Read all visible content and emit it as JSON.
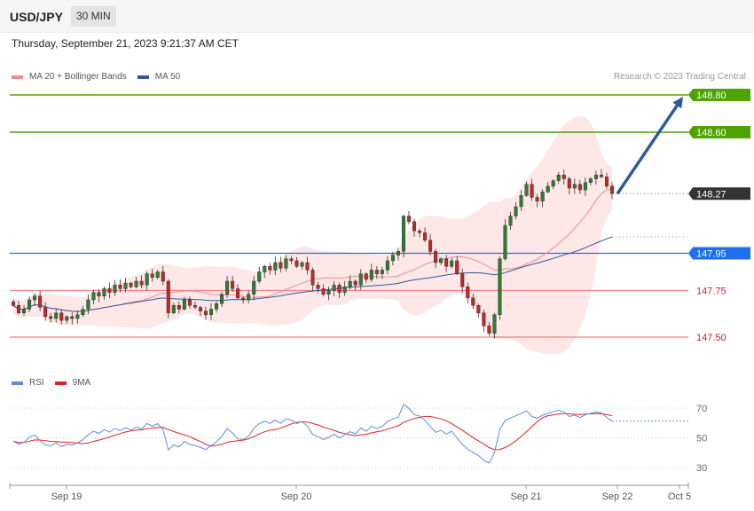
{
  "header": {
    "pair": "USD/JPY",
    "interval": "30 MIN"
  },
  "timestamp": "Thursday, September 21, 2023 9:21:37 AM CET",
  "credit": "Research © 2023 Trading Central",
  "legend_main": [
    {
      "label": "MA 20 + Bollinger Bands",
      "color": "#f28c8c"
    },
    {
      "label": "MA 50",
      "color": "#2f5a9a"
    }
  ],
  "legend_rsi": [
    {
      "label": "RSI",
      "color": "#5b8de0"
    },
    {
      "label": "9MA",
      "color": "#e02020"
    }
  ],
  "colors": {
    "bull": "#2e7d32",
    "bear": "#c62828",
    "resistance": "#4fa300",
    "pivot": "#1e6ff0",
    "support": "#f08080",
    "last": "#333333",
    "arrow": "#2f5a9a",
    "band": "#fde3e3"
  },
  "chart_data": [
    {
      "type": "candlestick",
      "ylim": [
        147.4,
        148.85
      ],
      "x_ticks": [
        "Sep 19",
        "Sep 20",
        "Sep 21",
        "Sep 22",
        "Oct 5"
      ],
      "levels": [
        {
          "value": 148.8,
          "label": "148.80",
          "kind": "resistance"
        },
        {
          "value": 148.6,
          "label": "148.60",
          "kind": "resistance"
        },
        {
          "value": 148.27,
          "label": "148.27",
          "kind": "last"
        },
        {
          "value": 147.95,
          "label": "147.95",
          "kind": "pivot"
        },
        {
          "value": 147.75,
          "label": "147.75",
          "kind": "support"
        },
        {
          "value": 147.5,
          "label": "147.50",
          "kind": "support"
        }
      ],
      "arrow": {
        "from": 148.27,
        "to": 148.8
      },
      "closes": [
        147.67,
        147.63,
        147.65,
        147.7,
        147.72,
        147.66,
        147.61,
        147.6,
        147.63,
        147.59,
        147.61,
        147.6,
        147.62,
        147.65,
        147.7,
        147.74,
        147.72,
        147.76,
        147.74,
        147.78,
        147.76,
        147.79,
        147.77,
        147.8,
        147.78,
        147.84,
        147.82,
        147.85,
        147.8,
        147.63,
        147.67,
        147.65,
        147.7,
        147.67,
        147.66,
        147.64,
        147.62,
        147.65,
        147.68,
        147.73,
        147.8,
        147.76,
        147.71,
        147.7,
        147.73,
        147.8,
        147.85,
        147.88,
        147.86,
        147.9,
        147.87,
        147.92,
        147.91,
        147.88,
        147.9,
        147.86,
        147.78,
        147.76,
        147.73,
        147.75,
        147.78,
        147.74,
        147.77,
        147.8,
        147.78,
        147.84,
        147.81,
        147.86,
        147.84,
        147.86,
        147.91,
        147.94,
        147.96,
        148.15,
        148.12,
        148.07,
        148.06,
        148.02,
        147.96,
        147.9,
        147.92,
        147.88,
        147.91,
        147.84,
        147.77,
        147.71,
        147.67,
        147.63,
        147.56,
        147.52,
        147.62,
        147.92,
        148.1,
        148.15,
        148.2,
        148.26,
        148.32,
        148.25,
        148.23,
        148.28,
        148.31,
        148.34,
        148.37,
        148.35,
        148.3,
        148.32,
        148.29,
        148.33,
        148.35,
        148.37,
        148.36,
        148.31,
        148.27
      ]
    },
    {
      "type": "line",
      "title": "RSI",
      "ylim": [
        20,
        80
      ],
      "y_ticks": [
        70,
        50,
        30
      ],
      "rsi": [
        47.8,
        45.7,
        47.0,
        50.5,
        51.9,
        48.1,
        45.2,
        44.6,
        46.6,
        44.1,
        45.7,
        45.1,
        46.6,
        48.7,
        52.0,
        54.4,
        53.0,
        55.5,
        53.8,
        56.3,
        54.8,
        56.8,
        55.3,
        57.3,
        55.8,
        59.7,
        57.7,
        59.6,
        55.7,
        41.9,
        45.2,
        43.9,
        47.6,
        45.5,
        44.8,
        43.5,
        42.1,
        44.7,
        47.3,
        51.0,
        56.2,
        53.2,
        49.3,
        48.9,
        51.1,
        56.4,
        59.5,
        61.2,
        59.7,
        62.0,
        59.8,
        62.7,
        61.9,
        59.6,
        61.0,
        57.8,
        52.2,
        50.8,
        48.8,
        50.3,
        52.5,
        49.8,
        52.0,
        54.1,
        52.6,
        56.6,
        54.4,
        57.8,
        56.3,
        57.7,
        60.9,
        62.7,
        63.8,
        72.5,
        69.8,
        65.6,
        64.7,
        61.8,
        57.6,
        53.7,
        55.1,
        52.5,
        54.5,
        49.9,
        45.6,
        42.3,
        40.1,
        38.1,
        34.8,
        33.1,
        39.9,
        55.5,
        61.8,
        63.3,
        64.8,
        66.5,
        68.1,
        64.3,
        63.2,
        65.2,
        66.4,
        67.5,
        68.6,
        67.4,
        64.3,
        65.3,
        63.6,
        65.5,
        66.5,
        67.4,
        66.8,
        63.7,
        61.3
      ]
    }
  ]
}
